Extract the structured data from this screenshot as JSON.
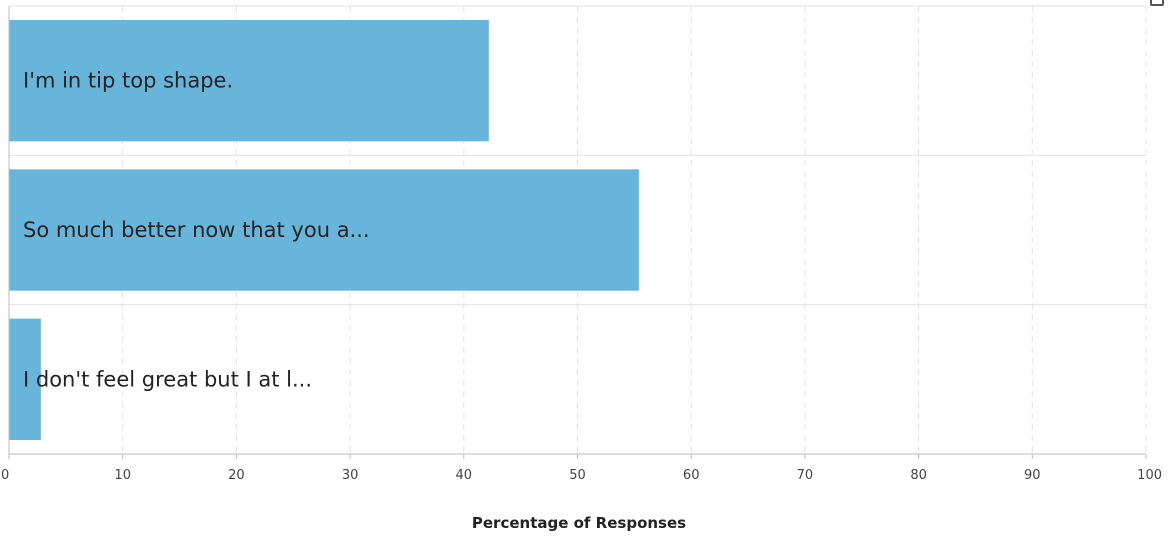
{
  "chart_data": {
    "type": "bar",
    "orientation": "horizontal",
    "categories": [
      "I'm in tip top shape.",
      "So much better now that you a...",
      "I don't feel great but I at l..."
    ],
    "values": [
      42.2,
      55.4,
      2.8
    ],
    "xlabel": "Percentage of Responses",
    "ylabel": "",
    "xlim": [
      0,
      100
    ],
    "xticks": [
      "0",
      "10",
      "20",
      "30",
      "40",
      "50",
      "60",
      "70",
      "80",
      "90",
      "100"
    ],
    "grid": true,
    "colors": {
      "bar": "#68b5db",
      "grid": "#e2e2e2",
      "axis": "#bbbbbb"
    }
  },
  "icons": {
    "corner": "expand-icon"
  }
}
